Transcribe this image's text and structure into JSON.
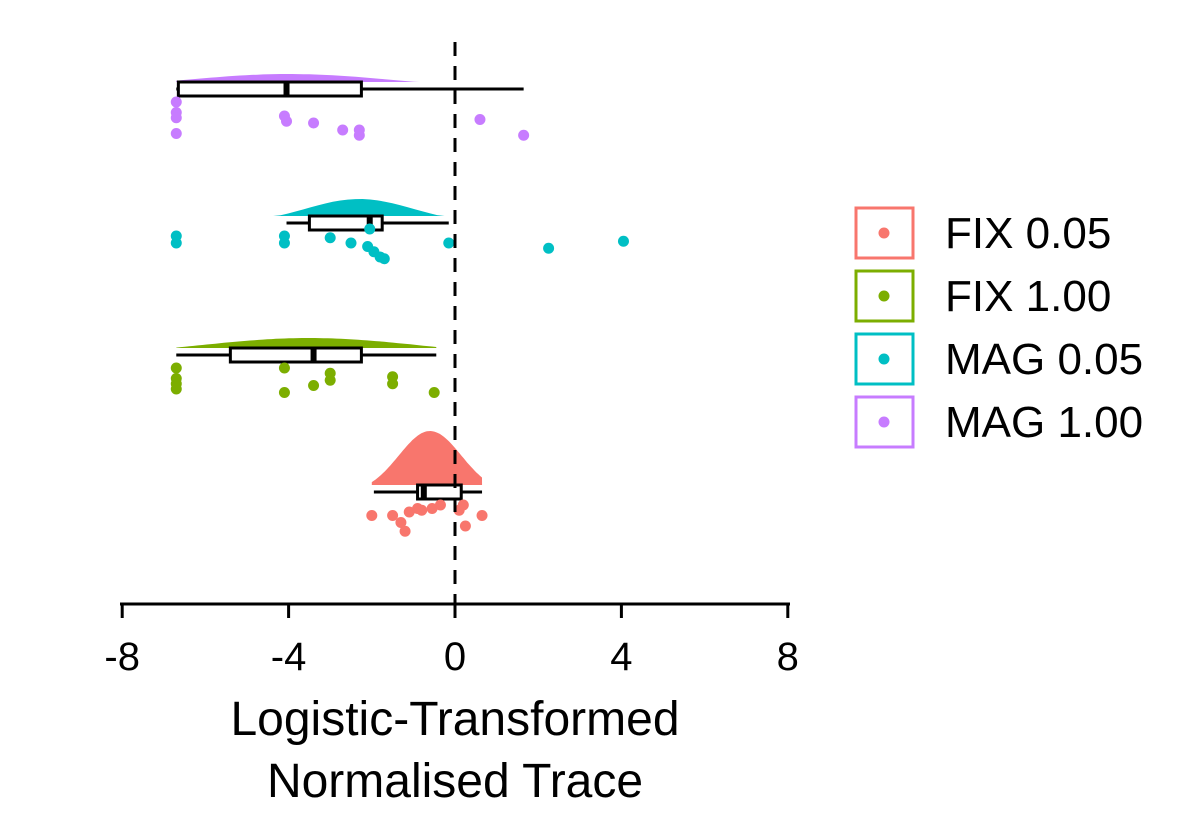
{
  "chart_data": {
    "type": "raincloud",
    "title": "",
    "xlabel_lines": [
      "Logistic-Transformed",
      "Normalised Trace"
    ],
    "xlim": [
      -8,
      8
    ],
    "xticks": [
      -8,
      -4,
      0,
      4,
      8
    ],
    "tick_labels": [
      "-8",
      "-4",
      "0",
      "4",
      "8"
    ],
    "reference_line_x": 0,
    "legend": {
      "placement": "right"
    },
    "series": [
      {
        "name": "FIX 0.05",
        "color": "#F8766D",
        "box": {
          "min": -1.95,
          "q1": -0.9,
          "median": -0.75,
          "q3": 0.15,
          "max": 0.65
        },
        "density": {
          "range": [
            -2.0,
            0.65
          ],
          "mode": -0.6
        },
        "points": [
          {
            "x": -2.0,
            "y": 0.3
          },
          {
            "x": -1.5,
            "y": 0.3
          },
          {
            "x": -1.3,
            "y": 0.5
          },
          {
            "x": -1.2,
            "y": 0.75
          },
          {
            "x": -1.1,
            "y": 0.2
          },
          {
            "x": -0.9,
            "y": 0.1
          },
          {
            "x": -0.8,
            "y": 0.15
          },
          {
            "x": -0.55,
            "y": 0.1
          },
          {
            "x": -0.35,
            "y": 0.0
          },
          {
            "x": 0.1,
            "y": 0.15
          },
          {
            "x": 0.2,
            "y": 0.0
          },
          {
            "x": 0.25,
            "y": 0.6
          },
          {
            "x": 0.65,
            "y": 0.3
          }
        ]
      },
      {
        "name": "FIX 1.00",
        "color": "#7CAE00",
        "box": {
          "min": -6.7,
          "q1": -5.4,
          "median": -3.4,
          "q3": -2.25,
          "max": -0.45
        },
        "density": {
          "range": [
            -6.7,
            -0.45
          ],
          "mode": -3.5
        },
        "points": [
          {
            "x": -6.7,
            "y": 0.0
          },
          {
            "x": -6.7,
            "y": 0.3
          },
          {
            "x": -6.7,
            "y": 0.45
          },
          {
            "x": -6.7,
            "y": 0.6
          },
          {
            "x": -4.1,
            "y": 0.0
          },
          {
            "x": -4.1,
            "y": 0.7
          },
          {
            "x": -3.4,
            "y": 0.5
          },
          {
            "x": -3.0,
            "y": 0.15
          },
          {
            "x": -3.0,
            "y": 0.35
          },
          {
            "x": -1.5,
            "y": 0.25
          },
          {
            "x": -1.5,
            "y": 0.45
          },
          {
            "x": -0.5,
            "y": 0.7
          }
        ]
      },
      {
        "name": "MAG 0.05",
        "color": "#00BFC4",
        "box": {
          "min": -4.05,
          "q1": -3.5,
          "median": -2.05,
          "q3": -1.75,
          "max": -0.15
        },
        "density": {
          "range": [
            -6.7,
            4.05
          ],
          "mode": -2.3
        },
        "points": [
          {
            "x": -6.7,
            "y": 0.0
          },
          {
            "x": -6.7,
            "y": 0.2
          },
          {
            "x": -4.1,
            "y": 0.0
          },
          {
            "x": -4.1,
            "y": 0.2
          },
          {
            "x": -3.0,
            "y": 0.05
          },
          {
            "x": -2.5,
            "y": 0.2
          },
          {
            "x": -2.1,
            "y": 0.3
          },
          {
            "x": -2.05,
            "y": -0.2
          },
          {
            "x": -1.95,
            "y": 0.45
          },
          {
            "x": -1.8,
            "y": 0.6
          },
          {
            "x": -1.7,
            "y": 0.65
          },
          {
            "x": -0.15,
            "y": 0.2
          },
          {
            "x": 2.25,
            "y": 0.35
          },
          {
            "x": 4.05,
            "y": 0.15
          }
        ]
      },
      {
        "name": "MAG 1.00",
        "color": "#C77CFF",
        "box": {
          "min": -6.7,
          "q1": -6.65,
          "median": -4.05,
          "q3": -2.25,
          "max": 1.65
        },
        "density": {
          "range": [
            -6.7,
            1.65
          ],
          "mode": -4.0
        },
        "points": [
          {
            "x": -6.7,
            "y": 0.0
          },
          {
            "x": -6.7,
            "y": 0.3
          },
          {
            "x": -6.7,
            "y": 0.45
          },
          {
            "x": -6.7,
            "y": 0.9
          },
          {
            "x": -4.1,
            "y": 0.4
          },
          {
            "x": -4.05,
            "y": 0.55
          },
          {
            "x": -3.4,
            "y": 0.6
          },
          {
            "x": -2.7,
            "y": 0.8
          },
          {
            "x": -2.3,
            "y": 0.8
          },
          {
            "x": -2.3,
            "y": 0.95
          },
          {
            "x": 0.6,
            "y": 0.5
          },
          {
            "x": 1.65,
            "y": 0.95
          }
        ]
      }
    ]
  }
}
